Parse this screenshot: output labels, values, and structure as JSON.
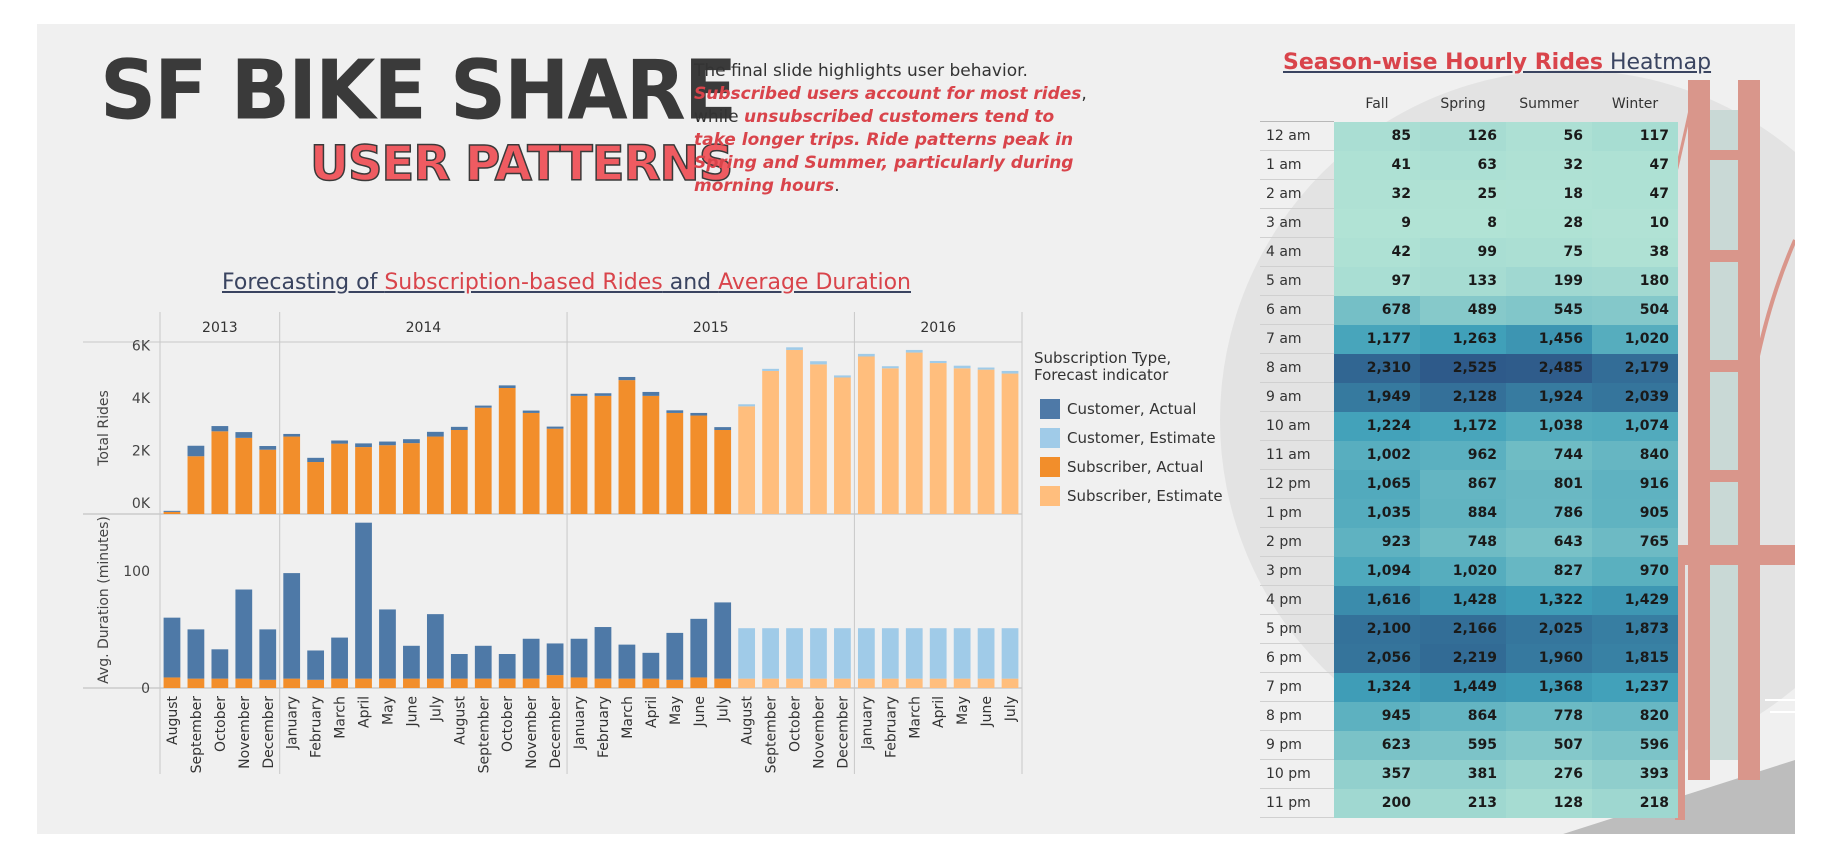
{
  "header": {
    "brand_line1": "SF BIKE SHARE",
    "brand_line2": "USER PATTERNS",
    "intro_plain1": "The final slide highlights user behavior.",
    "intro_em1": "Subscribed users account for most rides",
    "intro_plain2": ", while ",
    "intro_em2": "unsubscribed customers tend to take longer trips. Ride patterns peak in Spring and Summer, particularly during morning hours",
    "intro_plain3": "."
  },
  "forecast_title": {
    "part1": "Forecasting of ",
    "part2": "Subscription-based Rides",
    "part3": " and ",
    "part4": "Average Duration"
  },
  "legend": {
    "title": "Subscription Type, Forecast indicator",
    "items": [
      {
        "label": "Customer, Actual",
        "color": "#4e79a7"
      },
      {
        "label": "Customer, Estimate",
        "color": "#a0cbe8"
      },
      {
        "label": "Subscriber, Actual",
        "color": "#f28e2b"
      },
      {
        "label": "Subscriber, Estimate",
        "color": "#ffbe7d"
      }
    ]
  },
  "chart_data": {
    "type": "bar",
    "year_headers": [
      "2013",
      "2014",
      "2015",
      "2016"
    ],
    "year_month_counts": [
      5,
      12,
      12,
      7
    ],
    "categories": [
      "August",
      "September",
      "October",
      "November",
      "December",
      "January",
      "February",
      "March",
      "April",
      "May",
      "June",
      "July",
      "August",
      "September",
      "October",
      "November",
      "December",
      "January",
      "February",
      "March",
      "April",
      "May",
      "June",
      "July",
      "August",
      "September",
      "October",
      "November",
      "December",
      "January",
      "February",
      "March",
      "April",
      "May",
      "June",
      "July"
    ],
    "rides_panel": {
      "ylabel": "Total Rides",
      "yticks": [
        "0K",
        "2K",
        "4K",
        "6K"
      ],
      "ylim": [
        0,
        6400
      ],
      "subscriber_actual": [
        80,
        2200,
        3150,
        2900,
        2450,
        2950,
        1980,
        2680,
        2550,
        2620,
        2700,
        2950,
        3200,
        4050,
        4800,
        3850,
        3250,
        4500,
        4500,
        5100,
        4500,
        3850,
        3750,
        3200,
        null,
        null,
        null,
        null,
        null,
        null,
        null,
        null,
        null,
        null,
        null,
        null
      ],
      "customer_actual": [
        40,
        400,
        200,
        220,
        140,
        100,
        160,
        120,
        140,
        140,
        150,
        180,
        120,
        80,
        100,
        90,
        80,
        80,
        100,
        120,
        150,
        100,
        100,
        110,
        null,
        null,
        null,
        null,
        null,
        null,
        null,
        null,
        null,
        null,
        null,
        null
      ],
      "subscriber_estimate": [
        null,
        null,
        null,
        null,
        null,
        null,
        null,
        null,
        null,
        null,
        null,
        null,
        null,
        null,
        null,
        null,
        null,
        null,
        null,
        null,
        null,
        null,
        null,
        null,
        4100,
        5450,
        6250,
        5700,
        5200,
        6000,
        5550,
        6150,
        5750,
        5550,
        5500,
        5350
      ],
      "customer_estimate": [
        null,
        null,
        null,
        null,
        null,
        null,
        null,
        null,
        null,
        null,
        null,
        null,
        null,
        null,
        null,
        null,
        null,
        null,
        null,
        null,
        null,
        null,
        null,
        null,
        80,
        80,
        100,
        120,
        80,
        100,
        80,
        100,
        80,
        100,
        80,
        100
      ]
    },
    "duration_panel": {
      "ylabel": "Avg. Duration (minutes)",
      "yticks": [
        "0",
        "100"
      ],
      "ylim": [
        0,
        145
      ],
      "subscriber_actual": [
        9,
        8,
        8,
        8,
        7,
        8,
        7,
        8,
        8,
        8,
        8,
        8,
        8,
        8,
        8,
        8,
        11,
        9,
        8,
        8,
        8,
        7,
        9,
        8,
        null,
        null,
        null,
        null,
        null,
        null,
        null,
        null,
        null,
        null,
        null,
        null
      ],
      "customer_actual": [
        51,
        42,
        25,
        76,
        43,
        90,
        25,
        35,
        133,
        59,
        28,
        55,
        21,
        28,
        21,
        34,
        27,
        33,
        44,
        29,
        22,
        40,
        50,
        65,
        null,
        null,
        null,
        null,
        null,
        null,
        null,
        null,
        null,
        null,
        null,
        null
      ],
      "subscriber_estimate": [
        null,
        null,
        null,
        null,
        null,
        null,
        null,
        null,
        null,
        null,
        null,
        null,
        null,
        null,
        null,
        null,
        null,
        null,
        null,
        null,
        null,
        null,
        null,
        null,
        8,
        8,
        8,
        8,
        8,
        8,
        8,
        8,
        8,
        8,
        8,
        8
      ],
      "customer_estimate": [
        null,
        null,
        null,
        null,
        null,
        null,
        null,
        null,
        null,
        null,
        null,
        null,
        null,
        null,
        null,
        null,
        null,
        null,
        null,
        null,
        null,
        null,
        null,
        null,
        43,
        43,
        43,
        43,
        43,
        43,
        43,
        43,
        43,
        43,
        43,
        43
      ]
    },
    "colors": {
      "customer_actual": "#4e79a7",
      "customer_estimate": "#a0cbe8",
      "subscriber_actual": "#f28e2b",
      "subscriber_estimate": "#ffbe7d"
    }
  },
  "heatmap": {
    "title_part1": "Season-wise Hourly Rides",
    "title_part2": " Heatmap",
    "columns": [
      "Fall",
      "Spring",
      "Summer",
      "Winter"
    ],
    "rows": [
      {
        "hour": "12 am",
        "values": [
          85,
          126,
          56,
          117
        ],
        "text": [
          "85",
          "126",
          "56",
          "117"
        ]
      },
      {
        "hour": "1 am",
        "values": [
          41,
          63,
          32,
          47
        ],
        "text": [
          "41",
          "63",
          "32",
          "47"
        ]
      },
      {
        "hour": "2 am",
        "values": [
          32,
          25,
          18,
          47
        ],
        "text": [
          "32",
          "25",
          "18",
          "47"
        ]
      },
      {
        "hour": "3 am",
        "values": [
          9,
          8,
          28,
          10
        ],
        "text": [
          "9",
          "8",
          "28",
          "10"
        ]
      },
      {
        "hour": "4 am",
        "values": [
          42,
          99,
          75,
          38
        ],
        "text": [
          "42",
          "99",
          "75",
          "38"
        ]
      },
      {
        "hour": "5 am",
        "values": [
          97,
          133,
          199,
          180
        ],
        "text": [
          "97",
          "133",
          "199",
          "180"
        ]
      },
      {
        "hour": "6 am",
        "values": [
          678,
          489,
          545,
          504
        ],
        "text": [
          "678",
          "489",
          "545",
          "504"
        ]
      },
      {
        "hour": "7 am",
        "values": [
          1177,
          1263,
          1456,
          1020
        ],
        "text": [
          "1,177",
          "1,263",
          "1,456",
          "1,020"
        ]
      },
      {
        "hour": "8 am",
        "values": [
          2310,
          2525,
          2485,
          2179
        ],
        "text": [
          "2,310",
          "2,525",
          "2,485",
          "2,179"
        ]
      },
      {
        "hour": "9 am",
        "values": [
          1949,
          2128,
          1924,
          2039
        ],
        "text": [
          "1,949",
          "2,128",
          "1,924",
          "2,039"
        ]
      },
      {
        "hour": "10 am",
        "values": [
          1224,
          1172,
          1038,
          1074
        ],
        "text": [
          "1,224",
          "1,172",
          "1,038",
          "1,074"
        ]
      },
      {
        "hour": "11 am",
        "values": [
          1002,
          962,
          744,
          840
        ],
        "text": [
          "1,002",
          "962",
          "744",
          "840"
        ]
      },
      {
        "hour": "12 pm",
        "values": [
          1065,
          867,
          801,
          916
        ],
        "text": [
          "1,065",
          "867",
          "801",
          "916"
        ]
      },
      {
        "hour": "1 pm",
        "values": [
          1035,
          884,
          786,
          905
        ],
        "text": [
          "1,035",
          "884",
          "786",
          "905"
        ]
      },
      {
        "hour": "2 pm",
        "values": [
          923,
          748,
          643,
          765
        ],
        "text": [
          "923",
          "748",
          "643",
          "765"
        ]
      },
      {
        "hour": "3 pm",
        "values": [
          1094,
          1020,
          827,
          970
        ],
        "text": [
          "1,094",
          "1,020",
          "827",
          "970"
        ]
      },
      {
        "hour": "4 pm",
        "values": [
          1616,
          1428,
          1322,
          1429
        ],
        "text": [
          "1,616",
          "1,428",
          "1,322",
          "1,429"
        ]
      },
      {
        "hour": "5 pm",
        "values": [
          2100,
          2166,
          2025,
          1873
        ],
        "text": [
          "2,100",
          "2,166",
          "2,025",
          "1,873"
        ]
      },
      {
        "hour": "6 pm",
        "values": [
          2056,
          2219,
          1960,
          1815
        ],
        "text": [
          "2,056",
          "2,219",
          "1,960",
          "1,815"
        ]
      },
      {
        "hour": "7 pm",
        "values": [
          1324,
          1449,
          1368,
          1237
        ],
        "text": [
          "1,324",
          "1,449",
          "1,368",
          "1,237"
        ]
      },
      {
        "hour": "8 pm",
        "values": [
          945,
          864,
          778,
          820
        ],
        "text": [
          "945",
          "864",
          "778",
          "820"
        ]
      },
      {
        "hour": "9 pm",
        "values": [
          623,
          595,
          507,
          596
        ],
        "text": [
          "623",
          "595",
          "507",
          "596"
        ]
      },
      {
        "hour": "10 pm",
        "values": [
          357,
          381,
          276,
          393
        ],
        "text": [
          "357",
          "381",
          "276",
          "393"
        ]
      },
      {
        "hour": "11 pm",
        "values": [
          200,
          213,
          128,
          218
        ],
        "text": [
          "200",
          "213",
          "128",
          "218"
        ]
      }
    ],
    "color_low": "#b2e3d5",
    "color_high": "#2e5a8a"
  }
}
